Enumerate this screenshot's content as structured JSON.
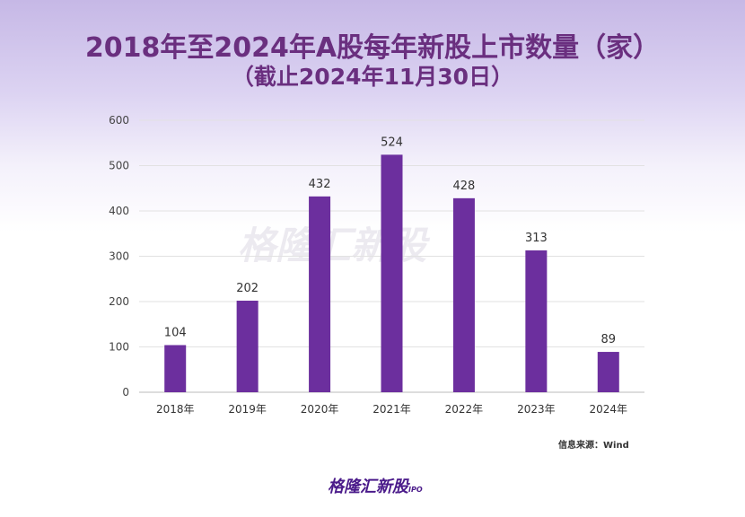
{
  "chart_data": {
    "type": "bar",
    "title": "2018年至2024年A股每年新股上市数量（家）",
    "subtitle": "（截止2024年11月30日）",
    "categories": [
      "2018年",
      "2019年",
      "2020年",
      "2021年",
      "2022年",
      "2023年",
      "2024年"
    ],
    "values": [
      104,
      202,
      432,
      524,
      428,
      313,
      89
    ],
    "yticks": [
      0,
      100,
      200,
      300,
      400,
      500,
      600
    ],
    "ylim": [
      0,
      600
    ],
    "xlabel": "",
    "ylabel": "",
    "grid": true,
    "bar_color": "#6c2f9e",
    "source": "信息来源：Wind"
  },
  "logo": {
    "text": "格隆汇新股",
    "sub": "IPO"
  }
}
